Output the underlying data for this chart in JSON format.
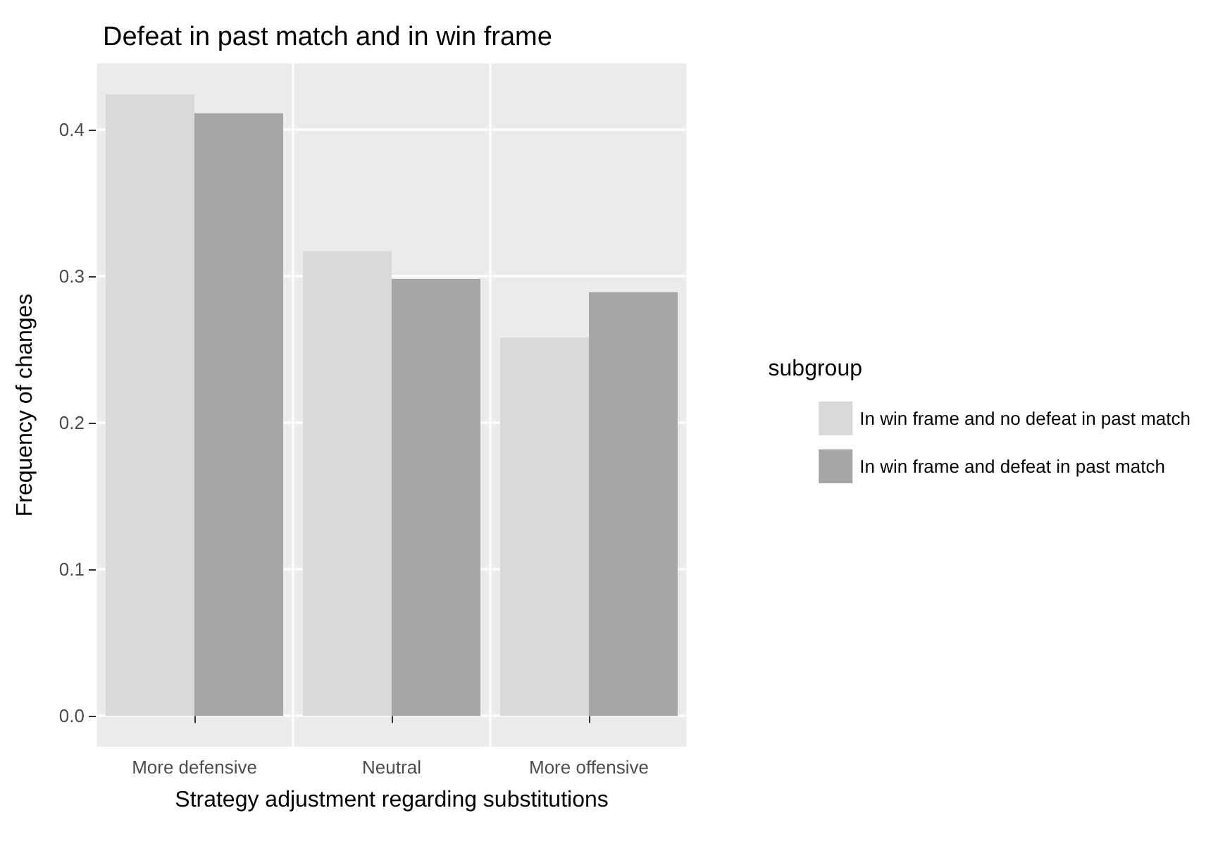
{
  "chart_data": {
    "type": "bar",
    "title": "Defeat in past match and in win frame",
    "xlabel": "Strategy adjustment regarding substitutions",
    "ylabel": "Frequency of changes",
    "legend_title": "subgroup",
    "categories": [
      "More defensive",
      "Neutral",
      "More offensive"
    ],
    "series": [
      {
        "name": "In win frame and no defeat in past match",
        "color": "#d9d9d9",
        "values": [
          0.424,
          0.317,
          0.258
        ]
      },
      {
        "name": "In win frame and defeat in past match",
        "color": "#a6a6a6",
        "values": [
          0.411,
          0.298,
          0.289
        ]
      }
    ],
    "ylim": [
      -0.021,
      0.445
    ],
    "yticks": [
      {
        "value": 0,
        "label": "0.0"
      },
      {
        "value": 0.1,
        "label": "0.1"
      },
      {
        "value": 0.2,
        "label": "0.2"
      },
      {
        "value": 0.3,
        "label": "0.3"
      },
      {
        "value": 0.4,
        "label": "0.4"
      }
    ],
    "grid": true,
    "legend": "right"
  }
}
